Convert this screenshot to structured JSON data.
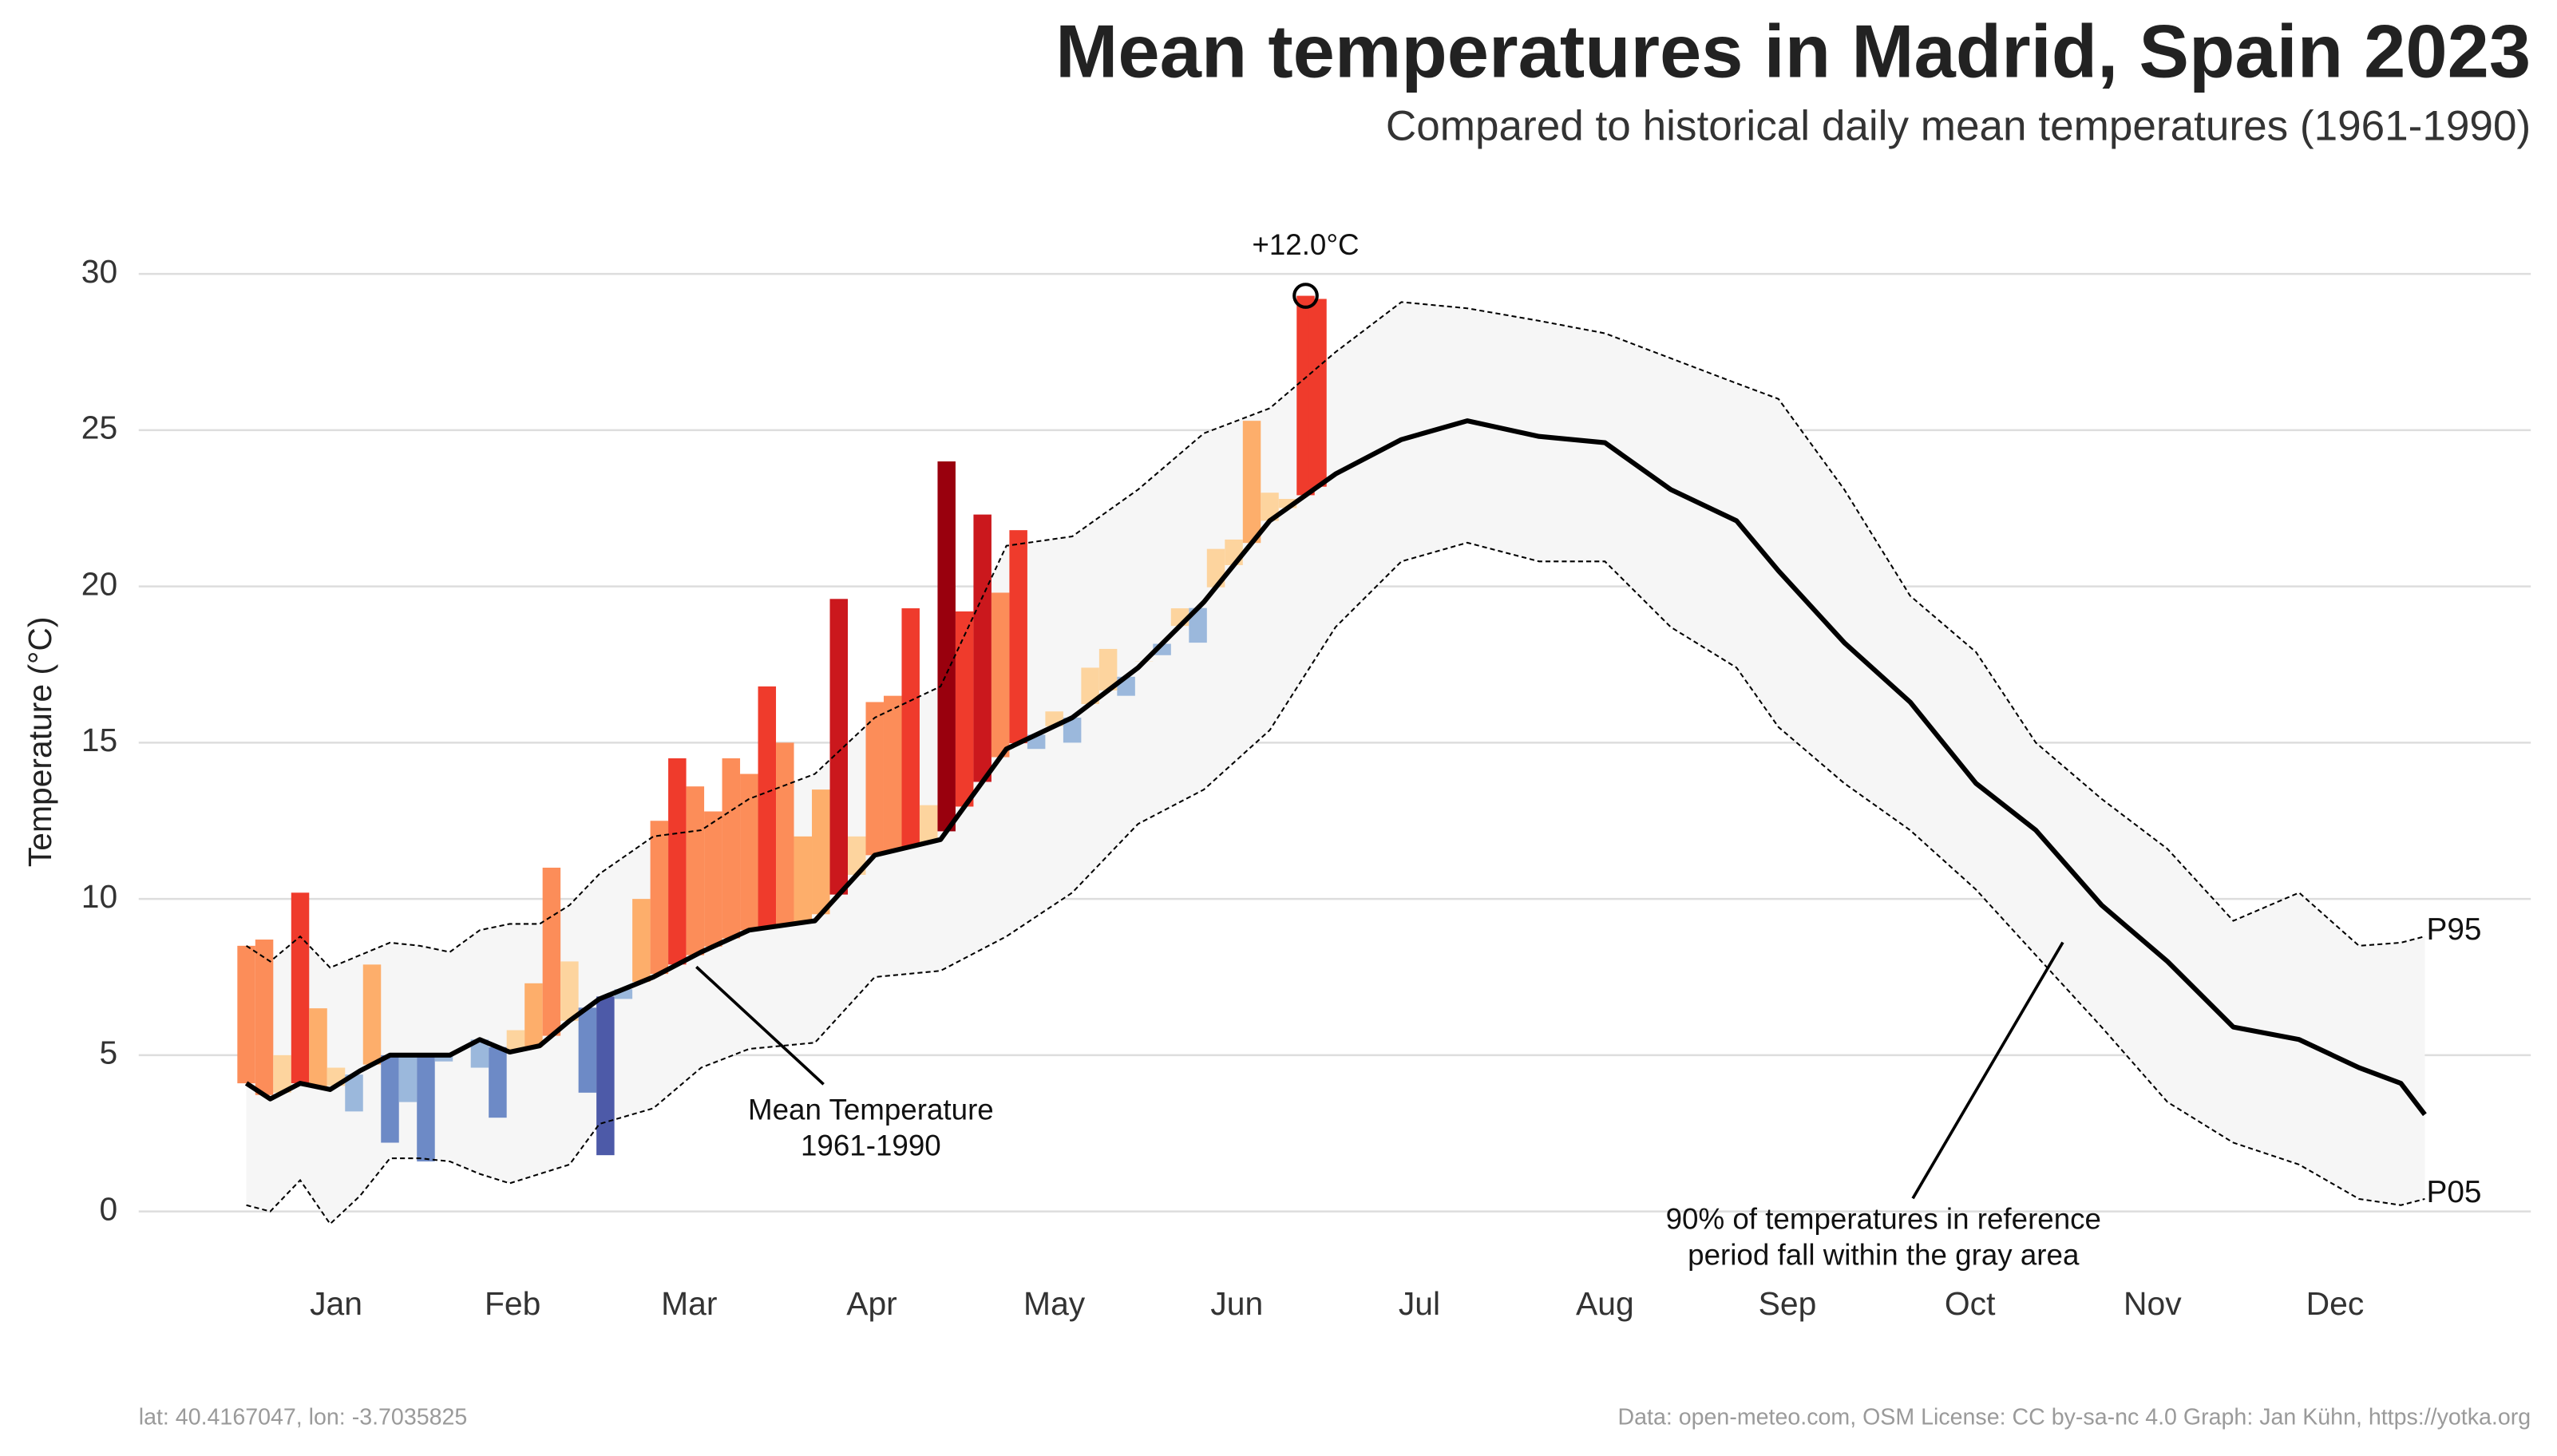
{
  "chart_data": {
    "type": "line",
    "title": "Mean temperatures in Madrid, Spain 2023",
    "subtitle": "Compared to historical daily mean temperatures (1961-1990)",
    "y_label": "Temperature (°C)",
    "xlim": [
      1,
      365
    ],
    "ylim": [
      -2,
      31
    ],
    "yticks": [
      0,
      5,
      10,
      15,
      20,
      25,
      30
    ],
    "xticks": [
      {
        "value": 16,
        "label": "Jan"
      },
      {
        "value": 45.5,
        "label": "Feb"
      },
      {
        "value": 75,
        "label": "Mar"
      },
      {
        "value": 105.5,
        "label": "Apr"
      },
      {
        "value": 136,
        "label": "May"
      },
      {
        "value": 166.5,
        "label": "Jun"
      },
      {
        "value": 197,
        "label": "Jul"
      },
      {
        "value": 228,
        "label": "Aug"
      },
      {
        "value": 258.5,
        "label": "Sep"
      },
      {
        "value": 289,
        "label": "Oct"
      },
      {
        "value": 319.5,
        "label": "Nov"
      },
      {
        "value": 350,
        "label": "Dec"
      }
    ],
    "grid": true,
    "series": [
      {
        "color": "#000000",
        "x": [
          1,
          5,
          10,
          15,
          20,
          25,
          30,
          35,
          40,
          45,
          50,
          55,
          60,
          69,
          77,
          85,
          96,
          106,
          117,
          128,
          139,
          150,
          161,
          172,
          183,
          194,
          205,
          217,
          228,
          239,
          250,
          257,
          268,
          279,
          290,
          300,
          311,
          322,
          333,
          344,
          354,
          361,
          365
        ],
        "values": [
          4.1,
          3.6,
          4.1,
          3.9,
          4.5,
          5.0,
          5.0,
          5.0,
          5.5,
          5.1,
          5.3,
          6.1,
          6.8,
          7.5,
          8.3,
          9.0,
          9.3,
          11.4,
          11.9,
          14.8,
          15.8,
          17.4,
          19.5,
          22.1,
          23.6,
          24.7,
          25.3,
          24.8,
          24.6,
          23.1,
          22.1,
          20.5,
          18.2,
          16.3,
          13.7,
          12.2,
          9.8,
          8.0,
          5.9,
          5.5,
          4.6,
          4.1,
          3.1
        ]
      },
      {
        "color": "#000000",
        "label": "P95",
        "x": [
          1,
          5,
          10,
          15,
          20,
          25,
          30,
          35,
          40,
          45,
          50,
          55,
          60,
          69,
          77,
          85,
          96,
          106,
          117,
          128,
          139,
          150,
          161,
          172,
          183,
          194,
          205,
          217,
          228,
          239,
          250,
          257,
          268,
          279,
          290,
          300,
          311,
          322,
          333,
          344,
          354,
          361,
          365
        ],
        "values": [
          8.5,
          8.0,
          8.8,
          7.8,
          8.2,
          8.6,
          8.5,
          8.3,
          9.0,
          9.2,
          9.2,
          9.8,
          10.8,
          12.0,
          12.2,
          13.2,
          14.0,
          15.8,
          16.8,
          21.3,
          21.6,
          23.1,
          24.9,
          25.7,
          27.5,
          29.1,
          28.9,
          28.5,
          28.1,
          27.3,
          26.5,
          26.0,
          23.1,
          19.7,
          17.9,
          15.0,
          13.2,
          11.6,
          9.3,
          10.2,
          8.5,
          8.6,
          8.8
        ]
      },
      {
        "color": "#000000",
        "label": "P05",
        "x": [
          1,
          5,
          10,
          15,
          20,
          25,
          30,
          35,
          40,
          45,
          50,
          55,
          60,
          69,
          77,
          85,
          96,
          106,
          117,
          128,
          139,
          150,
          161,
          172,
          183,
          194,
          205,
          217,
          228,
          239,
          250,
          257,
          268,
          279,
          290,
          300,
          311,
          322,
          333,
          344,
          354,
          361,
          365
        ],
        "values": [
          0.2,
          0.0,
          1.0,
          -0.4,
          0.5,
          1.7,
          1.7,
          1.6,
          1.2,
          0.9,
          1.2,
          1.5,
          2.8,
          3.3,
          4.6,
          5.2,
          5.4,
          7.5,
          7.7,
          8.8,
          10.2,
          12.4,
          13.5,
          15.4,
          18.7,
          20.8,
          21.4,
          20.8,
          20.8,
          18.7,
          17.4,
          15.5,
          13.7,
          12.2,
          10.3,
          8.2,
          5.9,
          3.5,
          2.2,
          1.5,
          0.4,
          0.2,
          0.4
        ]
      },
      {
        "x": [
          1,
          4,
          7,
          10,
          13,
          16,
          19,
          22,
          25,
          28,
          31,
          34,
          37,
          40,
          43,
          46,
          49,
          52,
          55,
          58,
          61,
          64,
          67,
          70,
          73,
          76,
          79,
          82,
          85,
          88,
          91,
          94,
          97,
          100,
          103,
          106,
          109,
          112,
          115,
          118,
          121,
          124,
          127,
          130,
          133,
          136,
          139,
          142,
          145,
          148,
          151,
          154,
          157,
          160,
          163,
          166,
          169,
          172,
          175,
          178,
          180
        ],
        "values": [
          8.5,
          8.7,
          5.0,
          10.2,
          6.5,
          4.6,
          3.2,
          7.9,
          2.2,
          3.5,
          1.6,
          4.8,
          5.2,
          4.6,
          3.0,
          5.8,
          7.3,
          11.0,
          8.0,
          3.8,
          1.8,
          6.8,
          10.0,
          12.5,
          14.5,
          13.6,
          12.8,
          14.5,
          14.0,
          16.8,
          15.0,
          12.0,
          13.5,
          19.6,
          12.0,
          16.3,
          16.5,
          19.3,
          13.0,
          24.0,
          19.2,
          22.3,
          19.8,
          21.8,
          14.8,
          16.0,
          15.0,
          17.4,
          18.0,
          16.5,
          17.6,
          17.8,
          19.3,
          18.2,
          21.2,
          21.5,
          25.3,
          23.0,
          22.8,
          29.3,
          29.2
        ]
      }
    ],
    "annotations": [
      "+12.0°C",
      "Mean Temperature",
      "1961-1990",
      "90% of temperatures in reference",
      "period fall within the gray area"
    ],
    "footer_left": "lat: 40.4167047, lon: -3.7035825",
    "footer_right": "Data: open-meteo.com, OSM  License: CC by-sa-nc 4.0  Graph: Jan Kühn, https://yotka.org"
  }
}
